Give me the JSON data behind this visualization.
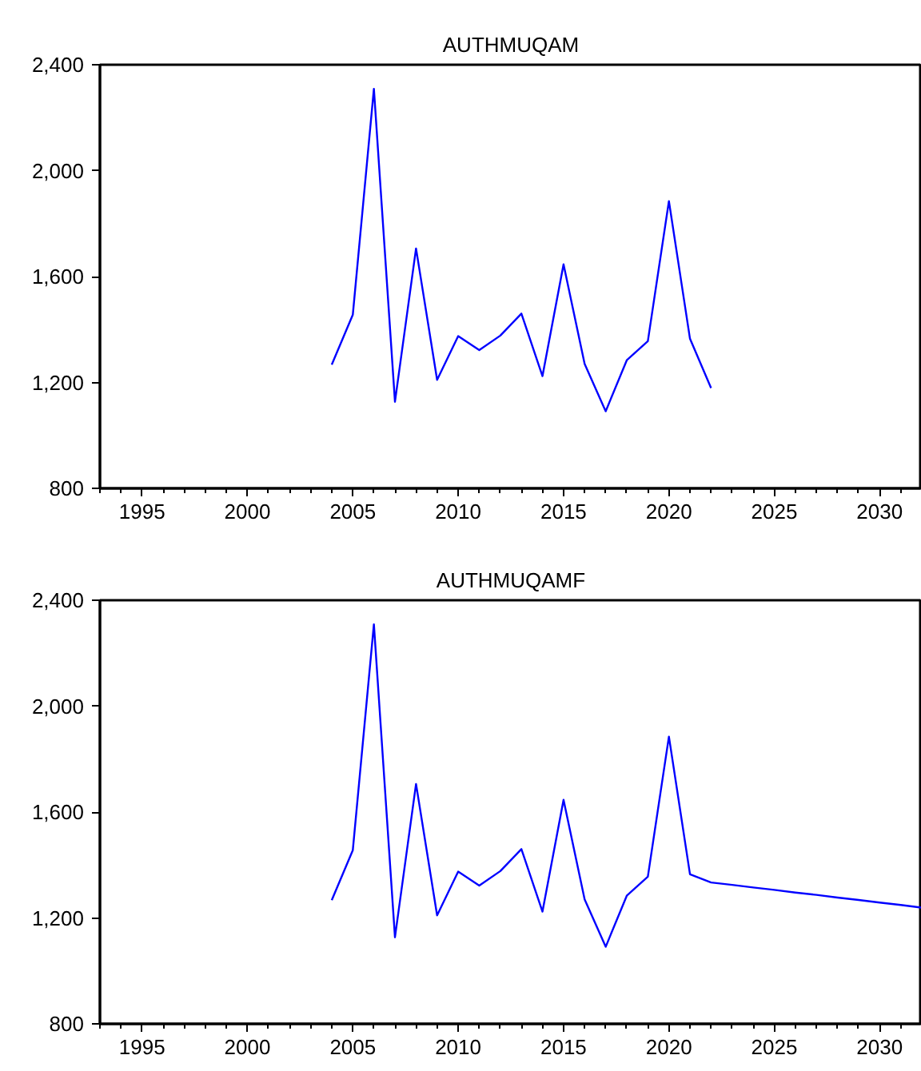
{
  "chart_data": [
    {
      "type": "line",
      "title": "AUTHMUQAM",
      "x": [
        2004,
        2005,
        2006,
        2007,
        2008,
        2009,
        2010,
        2011,
        2012,
        2013,
        2014,
        2015,
        2016,
        2017,
        2018,
        2019,
        2020,
        2021,
        2022
      ],
      "series": [
        {
          "color": "#0000ff",
          "values": [
            1267,
            1456,
            2309,
            1127,
            1706,
            1210,
            1375,
            1322,
            1377,
            1460,
            1224,
            1646,
            1270,
            1091,
            1284,
            1356,
            1885,
            1365,
            1179
          ]
        }
      ],
      "xlim": [
        1993,
        2032
      ],
      "xticks": [
        1995,
        2000,
        2005,
        2010,
        2015,
        2020,
        2025,
        2030
      ],
      "ylim": [
        800,
        2400
      ],
      "yticks": [
        {
          "value": 800,
          "label": "800"
        },
        {
          "value": 1200,
          "label": "1,200"
        },
        {
          "value": 1600,
          "label": "1,600"
        },
        {
          "value": 2000,
          "label": "2,000"
        },
        {
          "value": 2400,
          "label": "2,400"
        }
      ],
      "grid": false,
      "marker": "none",
      "line_style": "solid"
    },
    {
      "type": "line",
      "title": "AUTHMUQAMF",
      "x": [
        2004,
        2005,
        2006,
        2007,
        2008,
        2009,
        2010,
        2011,
        2012,
        2013,
        2014,
        2015,
        2016,
        2017,
        2018,
        2019,
        2020,
        2021,
        2022,
        2023,
        2024,
        2025,
        2026,
        2027,
        2028,
        2029,
        2030,
        2031,
        2032
      ],
      "series": [
        {
          "color": "#0000ff",
          "values": [
            1267,
            1456,
            2309,
            1127,
            1706,
            1210,
            1375,
            1322,
            1377,
            1460,
            1224,
            1646,
            1270,
            1091,
            1284,
            1356,
            1885,
            1365,
            1334,
            1325,
            1315,
            1306,
            1296,
            1287,
            1277,
            1268,
            1258,
            1249,
            1239
          ]
        }
      ],
      "xlim": [
        1993,
        2032
      ],
      "xticks": [
        1995,
        2000,
        2005,
        2010,
        2015,
        2020,
        2025,
        2030
      ],
      "ylim": [
        800,
        2400
      ],
      "yticks": [
        {
          "value": 800,
          "label": "800"
        },
        {
          "value": 1200,
          "label": "1,200"
        },
        {
          "value": 1600,
          "label": "1,600"
        },
        {
          "value": 2000,
          "label": "2,000"
        },
        {
          "value": 2400,
          "label": "2,400"
        }
      ],
      "grid": false,
      "marker": "none",
      "line_style": "solid"
    }
  ]
}
